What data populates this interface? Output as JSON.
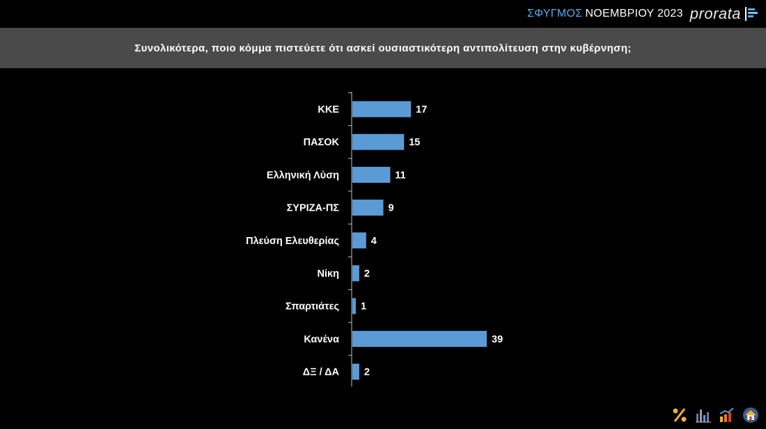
{
  "header": {
    "survey_name": "ΣΦΥΓΜΟΣ",
    "survey_date": "ΝΟΕΜΒΡΙΟΥ 2023",
    "brand": "prorata"
  },
  "colors": {
    "bar": "#5b9bd5",
    "title_band": "#4a4a4a",
    "background": "#000000"
  },
  "footer": {
    "icons": [
      "percent-icon",
      "bar-chart-icon",
      "growth-chart-icon",
      "house-icon"
    ]
  },
  "chart_data": {
    "type": "bar",
    "orientation": "horizontal",
    "title": "Συνολικότερα, ποιο κόμμα πιστεύετε ότι ασκεί ουσιαστικότερη αντιπολίτευση στην κυβέρνηση;",
    "categories": [
      "ΚΚΕ",
      "ΠΑΣΟΚ",
      "Ελληνική Λύση",
      "ΣΥΡΙΖΑ-ΠΣ",
      "Πλεύση Ελευθερίας",
      "Νίκη",
      "Σπαρτιάτες",
      "Κανένα",
      "ΔΞ / ΔΑ"
    ],
    "values": [
      17,
      15,
      11,
      9,
      4,
      2,
      1,
      39,
      2
    ],
    "xlim": [
      0,
      39
    ],
    "grid": false,
    "legend": "none"
  }
}
